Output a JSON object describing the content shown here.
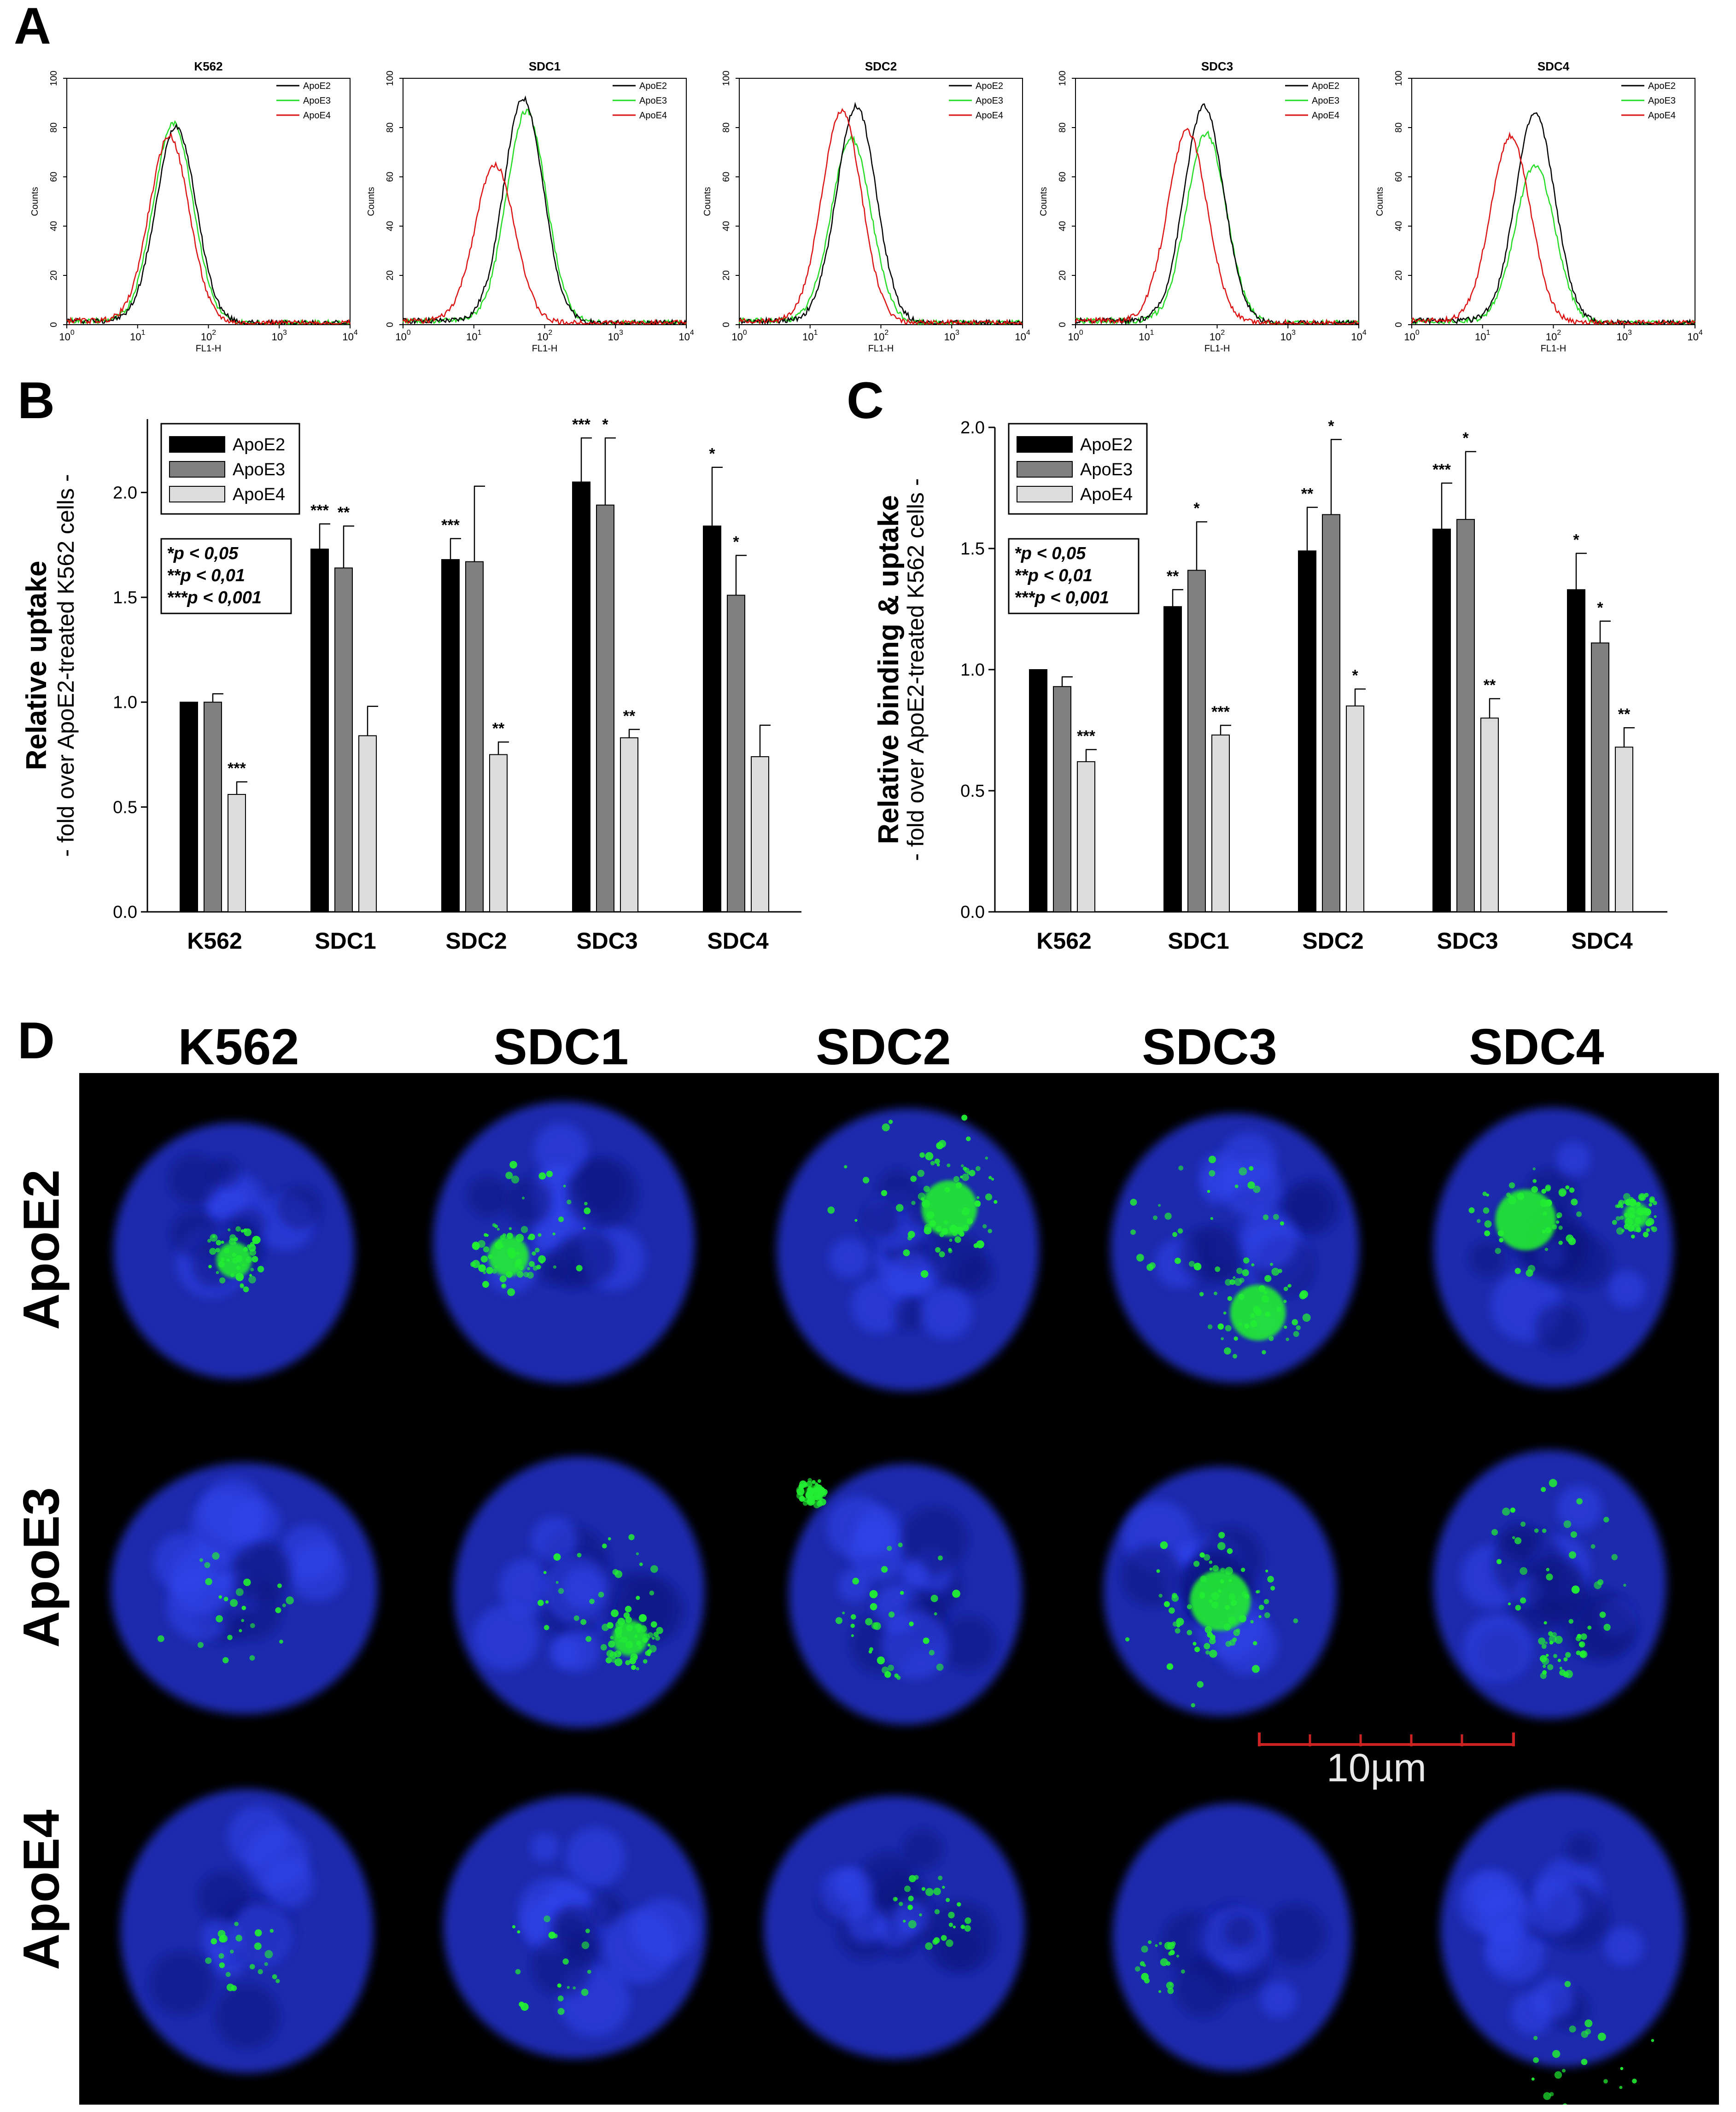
{
  "panels": {
    "a": "A",
    "b": "B",
    "c": "C",
    "d": "D"
  },
  "chart_data": [
    {
      "panel": "A",
      "type": "line",
      "subplots": [
        {
          "title": "K562",
          "peaks": {
            "ApoE2": 35,
            "ApoE3": 32,
            "ApoE4": 28
          },
          "heights": {
            "ApoE2": 80,
            "ApoE3": 81,
            "ApoE4": 76
          }
        },
        {
          "title": "SDC1",
          "peaks": {
            "ApoE2": 50,
            "ApoE3": 55,
            "ApoE4": 20
          },
          "heights": {
            "ApoE2": 91,
            "ApoE3": 86,
            "ApoE4": 64
          }
        },
        {
          "title": "SDC2",
          "peaks": {
            "ApoE2": 45,
            "ApoE3": 38,
            "ApoE4": 28
          },
          "heights": {
            "ApoE2": 88,
            "ApoE3": 75,
            "ApoE4": 86
          }
        },
        {
          "title": "SDC3",
          "peaks": {
            "ApoE2": 65,
            "ApoE3": 70,
            "ApoE4": 38
          },
          "heights": {
            "ApoE2": 88,
            "ApoE3": 77,
            "ApoE4": 78
          }
        },
        {
          "title": "SDC4",
          "peaks": {
            "ApoE2": 55,
            "ApoE3": 55,
            "ApoE4": 25
          },
          "heights": {
            "ApoE2": 85,
            "ApoE3": 64,
            "ApoE4": 76
          }
        }
      ],
      "legend": [
        "ApoE2",
        "ApoE3",
        "ApoE4"
      ],
      "legend_colors": [
        "#000000",
        "#22dd22",
        "#dd1111"
      ],
      "xlabel": "FL1-H",
      "ylabel": "Counts",
      "xticks": [
        "10^0",
        "10^1",
        "10^2",
        "10^3",
        "10^4"
      ],
      "yticks": [
        "0",
        "20",
        "40",
        "60",
        "80",
        "100"
      ],
      "xscale": "log",
      "ylim": [
        0,
        100
      ]
    },
    {
      "panel": "B",
      "type": "bar",
      "ylabel_main": "Relative uptake",
      "ylabel_sub": "- fold over ApoE2-treated K562 cells -",
      "categories": [
        "K562",
        "SDC1",
        "SDC2",
        "SDC3",
        "SDC4"
      ],
      "series": [
        {
          "name": "ApoE2",
          "color": "#000000",
          "values": [
            1.0,
            1.73,
            1.68,
            2.05,
            1.84
          ],
          "errors": [
            0,
            0.12,
            0.1,
            0.21,
            0.28
          ],
          "sig": [
            "",
            "***",
            "***",
            "***",
            "*"
          ]
        },
        {
          "name": "ApoE3",
          "color": "#808080",
          "values": [
            1.0,
            1.64,
            1.67,
            1.94,
            1.51
          ],
          "errors": [
            0.04,
            0.2,
            0.36,
            0.32,
            0.19
          ],
          "sig": [
            "",
            "**",
            "",
            "*",
            "*"
          ]
        },
        {
          "name": "ApoE4",
          "color": "#dcdcdc",
          "values": [
            0.56,
            0.84,
            0.75,
            0.83,
            0.74
          ],
          "errors": [
            0.06,
            0.14,
            0.06,
            0.04,
            0.15
          ],
          "sig": [
            "***",
            "",
            "**",
            "**",
            ""
          ]
        }
      ],
      "yticks": [
        "0.0",
        "0.5",
        "1.0",
        "1.5",
        "2.0"
      ],
      "ylim": [
        0,
        2.35
      ],
      "sig_legend": [
        "*p < 0,05",
        "**p < 0,01",
        "***p < 0,001"
      ]
    },
    {
      "panel": "C",
      "type": "bar",
      "ylabel_main": "Relative binding & uptake",
      "ylabel_sub": "- fold over ApoE2-treated K562 cells -",
      "categories": [
        "K562",
        "SDC1",
        "SDC2",
        "SDC3",
        "SDC4"
      ],
      "series": [
        {
          "name": "ApoE2",
          "color": "#000000",
          "values": [
            1.0,
            1.26,
            1.49,
            1.58,
            1.33
          ],
          "errors": [
            0,
            0.07,
            0.18,
            0.19,
            0.15
          ],
          "sig": [
            "",
            "**",
            "**",
            "***",
            "*"
          ]
        },
        {
          "name": "ApoE3",
          "color": "#808080",
          "values": [
            0.93,
            1.41,
            1.64,
            1.62,
            1.11
          ],
          "errors": [
            0.04,
            0.2,
            0.31,
            0.28,
            0.09
          ],
          "sig": [
            "",
            "*",
            "*",
            "*",
            "*"
          ]
        },
        {
          "name": "ApoE4",
          "color": "#dcdcdc",
          "values": [
            0.62,
            0.73,
            0.85,
            0.8,
            0.68
          ],
          "errors": [
            0.05,
            0.04,
            0.07,
            0.08,
            0.08
          ],
          "sig": [
            "***",
            "***",
            "*",
            "**",
            "**"
          ]
        }
      ],
      "yticks": [
        "0.0",
        "0.5",
        "1.0",
        "1.5",
        "2.0"
      ],
      "ylim": [
        0,
        2.0
      ],
      "sig_legend": [
        "*p < 0,05",
        "**p < 0,01",
        "***p < 0,001"
      ]
    }
  ],
  "micrographs": {
    "columns": [
      "K562",
      "SDC1",
      "SDC2",
      "SDC3",
      "SDC4"
    ],
    "rows": [
      "ApoE2",
      "ApoE3",
      "ApoE4"
    ],
    "scale_label": "10µm",
    "scale_color": "#cc2222",
    "nucleus_color": "#2233cc",
    "label_color": "#22ee33"
  }
}
